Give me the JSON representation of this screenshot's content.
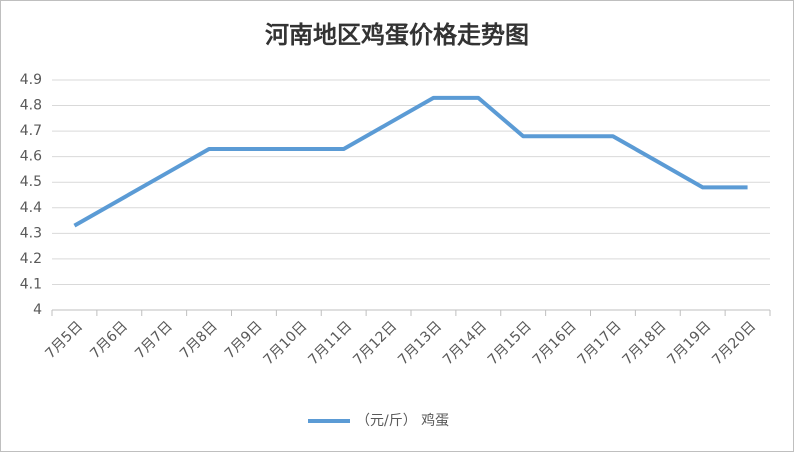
{
  "chart_data": {
    "type": "line",
    "title": "河南地区鸡蛋价格走势图",
    "categories": [
      "7月5日",
      "7月6日",
      "7月7日",
      "7月8日",
      "7月9日",
      "7月10日",
      "7月11日",
      "7月12日",
      "7月13日",
      "7月14日",
      "7月15日",
      "7月16日",
      "7月17日",
      "7月18日",
      "7月19日",
      "7月20日"
    ],
    "series": [
      {
        "name": "（元/斤） 鸡蛋",
        "color": "#5b9bd5",
        "values": [
          4.33,
          4.43,
          4.53,
          4.63,
          4.63,
          4.63,
          4.63,
          4.73,
          4.83,
          4.83,
          4.68,
          4.68,
          4.68,
          4.58,
          4.48,
          4.48
        ]
      }
    ],
    "ylim": [
      4,
      4.9
    ],
    "yticks": [
      4,
      4.1,
      4.2,
      4.3,
      4.4,
      4.5,
      4.6,
      4.7,
      4.8,
      4.9
    ],
    "grid": true,
    "legend": "bottom"
  }
}
